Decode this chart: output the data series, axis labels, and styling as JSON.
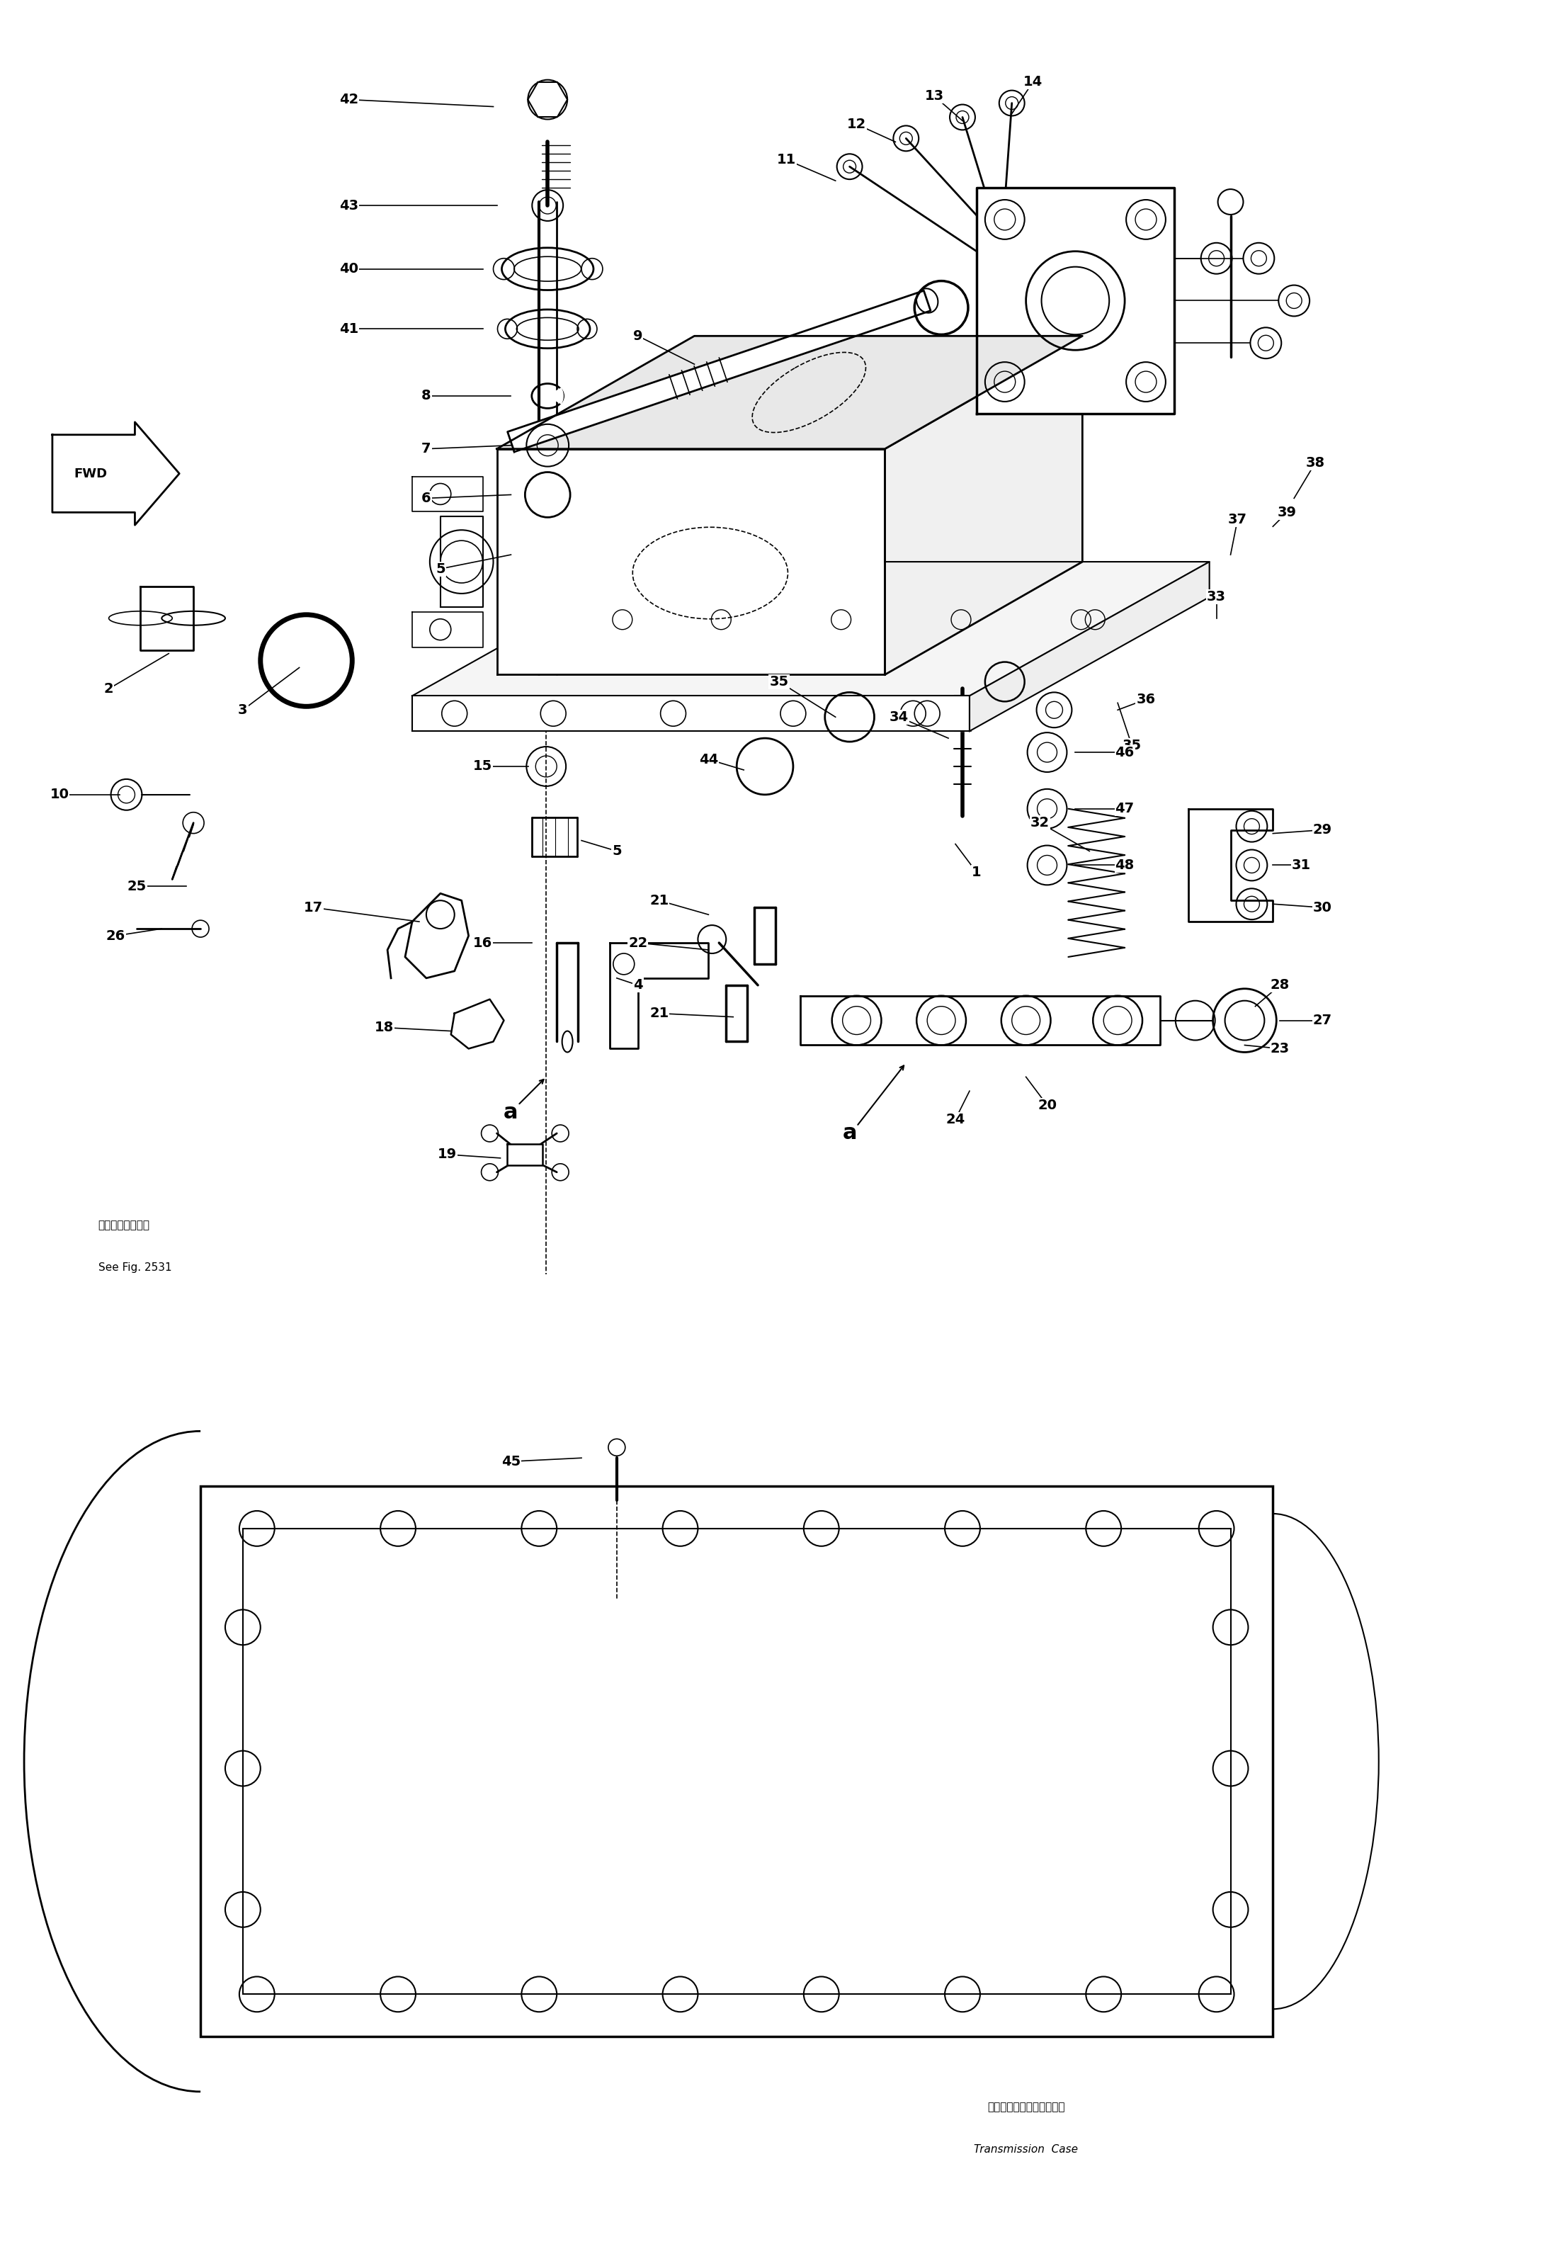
{
  "bg_color": "#ffffff",
  "line_color": "#000000",
  "transmission_label_jp": "トランスミッションケース",
  "transmission_label_en": "Transmission  Case",
  "see_fig_jp": "第２５３１図参照",
  "see_fig_en": "See Fig. 2531",
  "label_fontsize": 14
}
